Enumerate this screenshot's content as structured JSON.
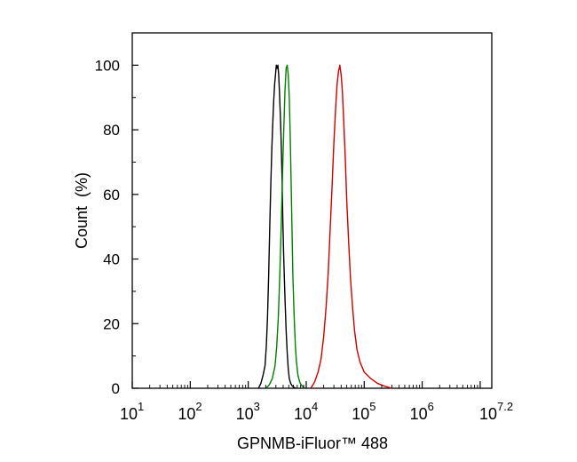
{
  "chart_data": {
    "type": "line",
    "title": "",
    "xlabel": "GPNMB-iFluor™ 488",
    "ylabel": "Count  (%)",
    "x_scale": "log",
    "xlim": [
      10,
      15848931.9
    ],
    "ylim": [
      0,
      110
    ],
    "grid": false,
    "legend": "none",
    "y_ticks": [
      0,
      20,
      40,
      60,
      80,
      100
    ],
    "x_ticks": [
      {
        "base": "10",
        "exp": "1"
      },
      {
        "base": "10",
        "exp": "2"
      },
      {
        "base": "10",
        "exp": "3"
      },
      {
        "base": "10",
        "exp": "4"
      },
      {
        "base": "10",
        "exp": "5"
      },
      {
        "base": "10",
        "exp": "6"
      },
      {
        "base": "10",
        "exp": "7.2"
      }
    ],
    "series": [
      {
        "color": "#000000",
        "x": [
          1500,
          1650,
          1800,
          1950,
          2050,
          2150,
          2250,
          2350,
          2450,
          2550,
          2650,
          2750,
          2850,
          2950,
          3050,
          3150,
          3250,
          3350,
          3450,
          3550,
          3650,
          3750,
          3850,
          3950,
          4100,
          4300,
          4500,
          4700,
          4900,
          5100,
          5400,
          5700,
          6100,
          6600
        ],
        "y": [
          0,
          1.5,
          4,
          7,
          13,
          22,
          35,
          50,
          63,
          74,
          82,
          89,
          94,
          97,
          100,
          99,
          100,
          97,
          92,
          86,
          80,
          72,
          63,
          52,
          40,
          28,
          18,
          11,
          6,
          3,
          1.5,
          0.8,
          0.3,
          0
        ]
      },
      {
        "color": "#008000",
        "x": [
          2000,
          2300,
          2600,
          2900,
          3100,
          3300,
          3500,
          3700,
          3900,
          4100,
          4300,
          4500,
          4700,
          4900,
          5100,
          5300,
          5500,
          5700,
          5900,
          6200,
          6500,
          6800,
          7200,
          7700,
          8200,
          8800,
          9500
        ],
        "y": [
          0,
          1,
          3,
          7,
          13,
          22,
          35,
          50,
          66,
          80,
          92,
          99,
          100,
          97,
          90,
          78,
          63,
          48,
          34,
          22,
          13,
          8,
          4,
          2,
          1,
          0.5,
          0
        ]
      },
      {
        "color": "#cc0000",
        "x": [
          12000,
          14000,
          16000,
          18000,
          20000,
          22000,
          24000,
          26000,
          28000,
          30000,
          32000,
          34000,
          36000,
          38000,
          40000,
          42000,
          44000,
          47000,
          50000,
          54000,
          58000,
          63000,
          68000,
          75000,
          85000,
          100000,
          130000,
          170000,
          220000,
          300000
        ],
        "y": [
          0,
          2,
          5,
          9,
          16,
          25,
          36,
          50,
          63,
          76,
          86,
          94,
          98,
          100,
          97,
          92,
          84,
          72,
          58,
          45,
          34,
          25,
          18,
          12,
          8,
          5,
          3,
          1.5,
          0.7,
          0
        ]
      }
    ]
  }
}
